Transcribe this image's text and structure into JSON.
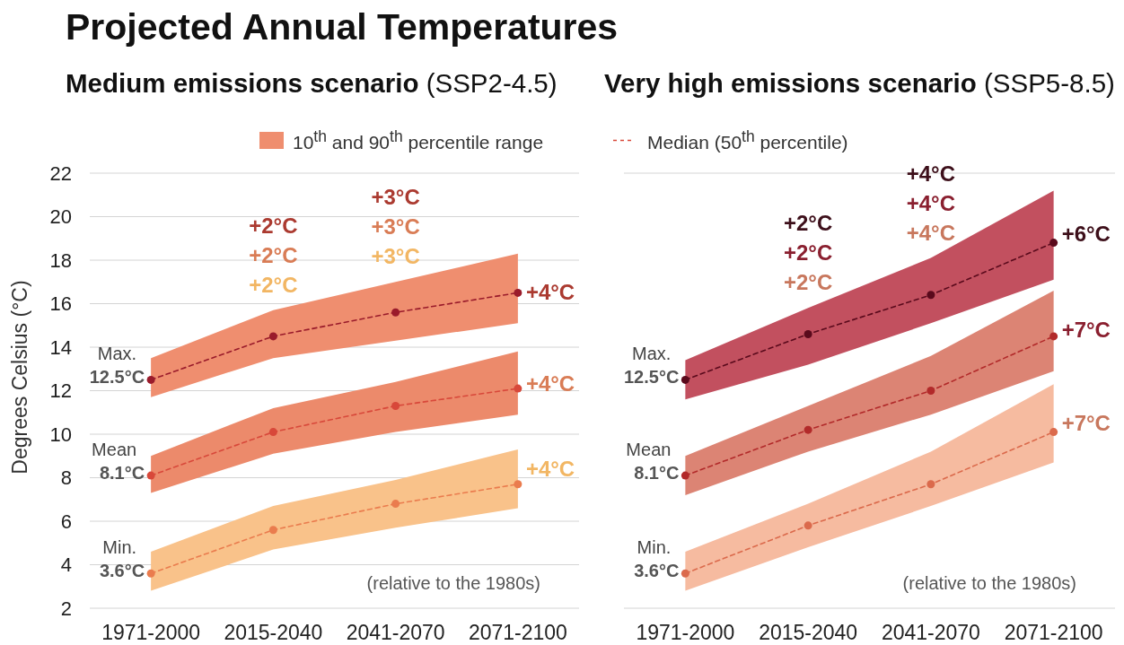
{
  "chart_data": [
    {
      "type": "line",
      "title": "Projected Annual Temperatures",
      "subtitle": "Medium emissions scenario (SSP2-4.5)",
      "ylabel": "Degrees Celsius (°C)",
      "categories": [
        "1971-2000",
        "2015-2040",
        "2041-2070",
        "2071-2100"
      ],
      "ylim": [
        2,
        22
      ],
      "yticks": [
        2,
        4,
        6,
        8,
        10,
        12,
        14,
        16,
        18,
        20,
        22
      ],
      "grid": "y",
      "marker": "circle",
      "line_style": "dashed",
      "annotations": [
        "10$^{th}$ and 90$^{th}$ percentile range",
        "Median (50$^{th}$ percentile)",
        "(relative to the 1980s)",
        "+2°C",
        "+2°C",
        "+2°C",
        "+3°C",
        "+3°C",
        "+3°C",
        {
          "text": "+4°C",
          "x": "2071-2100",
          "y": 16.5
        },
        {
          "text": "+4°C",
          "x": "2071-2100",
          "y": 12.3
        },
        {
          "text": "+4°C",
          "x": "2071-2100",
          "y": 8.4
        }
      ],
      "series": [
        {
          "name": "Max.",
          "color": "#9a1b2b",
          "values": [
            12.5,
            14.5,
            15.6,
            16.5
          ],
          "lower": [
            11.7,
            13.5,
            14.3,
            15.1
          ],
          "upper": [
            13.5,
            15.7,
            17.0,
            18.3
          ],
          "value_labels": [
            "12.5°C",
            null,
            null,
            null
          ]
        },
        {
          "name": "Mean",
          "color": "#d8483a",
          "values": [
            8.1,
            10.1,
            11.3,
            12.1
          ],
          "lower": [
            7.3,
            9.1,
            10.1,
            10.9
          ],
          "upper": [
            9.0,
            11.2,
            12.4,
            13.8
          ],
          "value_labels": [
            "8.1°C",
            null,
            null,
            null
          ]
        },
        {
          "name": "Min.",
          "color": "#ea7c4e",
          "values": [
            3.6,
            5.6,
            6.8,
            7.7
          ],
          "lower": [
            2.8,
            4.7,
            5.7,
            6.6
          ],
          "upper": [
            4.6,
            6.7,
            7.9,
            9.3
          ],
          "value_labels": [
            "3.6°C",
            null,
            null,
            null
          ]
        }
      ]
    },
    {
      "type": "line",
      "subtitle": "Very high emissions scenario (SSP5-8.5)",
      "categories": [
        "1971-2000",
        "2015-2040",
        "2041-2070",
        "2071-2100"
      ],
      "ylim": [
        2,
        22
      ],
      "yticks": [
        2,
        4,
        6,
        8,
        10,
        12,
        14,
        16,
        18,
        20,
        22
      ],
      "tick_labels": "x",
      "grid": "y",
      "marker": "circle",
      "line_style": "dashed",
      "annotations": [
        "(relative to the 1980s)",
        "+2°C",
        "+2°C",
        "+2°C",
        "+4°C",
        "+4°C",
        "+4°C",
        {
          "text": "+6°C",
          "x": "2071-2100",
          "y": 19.2
        },
        {
          "text": "+7°C",
          "x": "2071-2100",
          "y": 14.8
        },
        {
          "text": "+7°C",
          "x": "2071-2100",
          "y": 10.5
        }
      ],
      "series": [
        {
          "name": "Max.",
          "color": "#5a0a1c",
          "values": [
            12.5,
            14.6,
            16.4,
            18.8
          ],
          "lower": [
            11.6,
            13.2,
            15.1,
            17.1
          ],
          "upper": [
            13.4,
            15.8,
            18.1,
            21.2
          ],
          "value_labels": [
            "12.5°C",
            null,
            null,
            null
          ]
        },
        {
          "name": "Mean",
          "color": "#b22a2a",
          "values": [
            8.1,
            10.2,
            12.0,
            14.5
          ],
          "lower": [
            7.2,
            9.2,
            10.9,
            12.9
          ],
          "upper": [
            9.0,
            11.3,
            13.6,
            16.6
          ],
          "value_labels": [
            "8.1°C",
            null,
            null,
            null
          ]
        },
        {
          "name": "Min.",
          "color": "#db6a4c",
          "values": [
            3.6,
            5.8,
            7.7,
            10.1
          ],
          "lower": [
            2.8,
            4.8,
            6.7,
            8.7
          ],
          "upper": [
            4.6,
            6.8,
            9.2,
            12.3
          ],
          "value_labels": [
            "3.6°C",
            null,
            null,
            null
          ]
        }
      ]
    }
  ]
}
